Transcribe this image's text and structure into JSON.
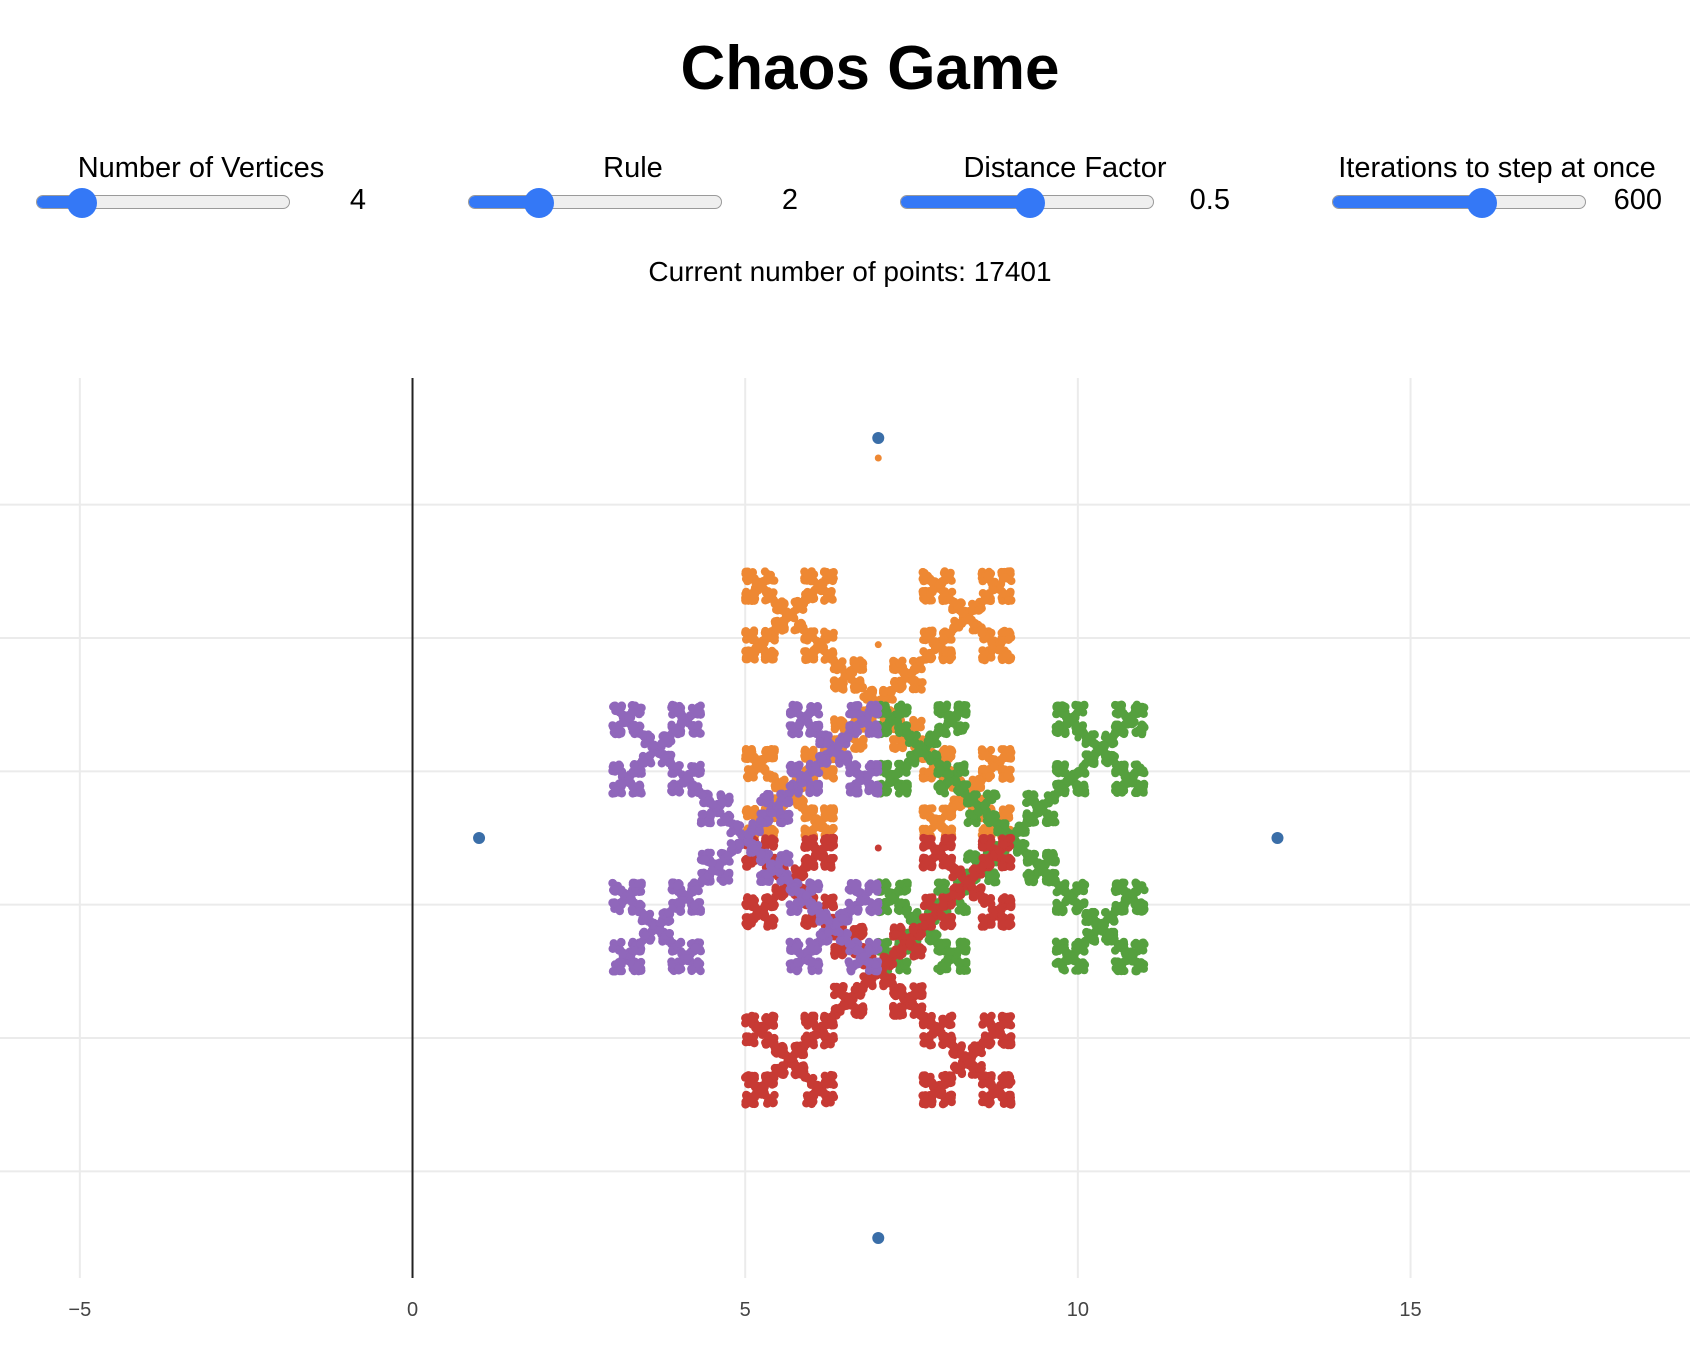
{
  "title": "Chaos Game",
  "controls": [
    {
      "label": "Number of Vertices",
      "value": "4",
      "fraction": 0.18
    },
    {
      "label": "Rule",
      "value": "2",
      "fraction": 0.28
    },
    {
      "label": "Distance Factor",
      "value": "0.5",
      "fraction": 0.51
    },
    {
      "label": "Iterations to step at once",
      "value": "600",
      "fraction": 0.59
    }
  ],
  "status": {
    "label": "Current number of points:",
    "count": "17401"
  },
  "colors": {
    "slider_accent": "#3478f6",
    "vertex": "#3a6ea8",
    "series": [
      "#ee8833",
      "#55a03e",
      "#c73a34",
      "#9067bb"
    ]
  },
  "chart_data": {
    "type": "scatter",
    "title": "",
    "xlabel": "",
    "ylabel": "",
    "xlim": [
      -6.2,
      19.2
    ],
    "ylim": [
      -6.6,
      6.9
    ],
    "xticks": [
      -5,
      0,
      5,
      10,
      15
    ],
    "xtick_labels": [
      "−5",
      "0",
      "5",
      "10",
      "15"
    ],
    "ygrid": [
      -5,
      -3,
      -1,
      1,
      3,
      5
    ],
    "grid": true,
    "legend": "none",
    "vertices": {
      "x": [
        7,
        13,
        7,
        1
      ],
      "y": [
        6,
        0,
        -6,
        0
      ]
    },
    "single_points": [
      {
        "x": 7,
        "y": 5.7,
        "series": 0
      },
      {
        "x": 7,
        "y": 2.9,
        "series": 0
      },
      {
        "x": 10,
        "y": 1.5,
        "series": 1
      },
      {
        "x": 7,
        "y": -0.15,
        "series": 2
      }
    ],
    "fractal": {
      "rule": 2,
      "distance_factor": 0.5,
      "center": [
        7,
        0
      ],
      "series": [
        {
          "center": [
            7,
            2
          ],
          "arm": [
            1,
            1
          ]
        },
        {
          "center": [
            9,
            0
          ],
          "arm": [
            1,
            -1
          ]
        },
        {
          "center": [
            7,
            -2
          ],
          "arm": [
            1,
            1
          ]
        },
        {
          "center": [
            5,
            0
          ],
          "arm": [
            1,
            -1
          ]
        }
      ]
    }
  }
}
